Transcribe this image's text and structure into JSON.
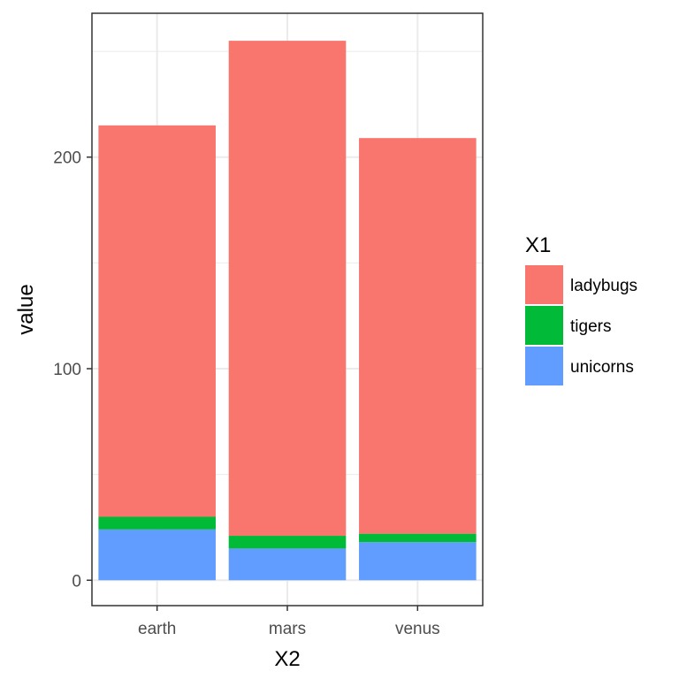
{
  "chart_data": {
    "type": "bar",
    "stacked": true,
    "title": "",
    "xlabel": "X2",
    "ylabel": "value",
    "categories": [
      "earth",
      "mars",
      "venus"
    ],
    "ylim": [
      -12,
      268
    ],
    "yticks": [
      0,
      100,
      200
    ],
    "ytick_labels": [
      "0",
      "100",
      "200"
    ],
    "grid": true,
    "legend": {
      "title": "X1",
      "position": "right"
    },
    "series": [
      {
        "name": "unicorns",
        "color": "#619CFF",
        "values": [
          24,
          15,
          18
        ]
      },
      {
        "name": "tigers",
        "color": "#00BA38",
        "values": [
          6,
          6,
          4
        ]
      },
      {
        "name": "ladybugs",
        "color": "#F8766D",
        "values": [
          185,
          234,
          187
        ]
      }
    ],
    "legend_order": [
      "ladybugs",
      "tigers",
      "unicorns"
    ]
  }
}
